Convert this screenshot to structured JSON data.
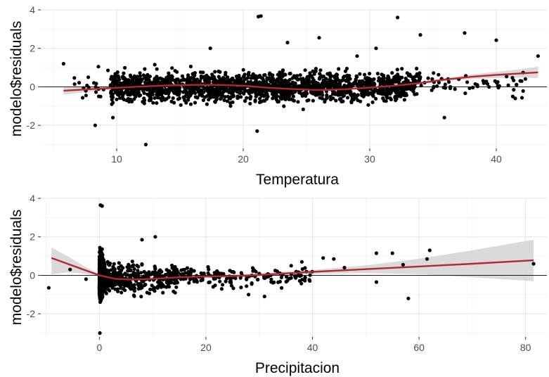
{
  "chart_data": [
    {
      "type": "scatter",
      "xlabel": "Temperatura",
      "ylabel": "modelo$residuals",
      "xlim": [
        4,
        44
      ],
      "ylim": [
        -3.2,
        4
      ],
      "x_ticks": [
        10,
        20,
        30,
        40
      ],
      "y_ticks": [
        -2,
        0,
        2,
        4
      ],
      "grid": true,
      "reference_line_y": 0,
      "smooth": {
        "color": "#b2282e",
        "band_color": "#d3d3d3",
        "x": [
          5.8,
          8,
          10,
          12,
          14,
          16,
          18,
          20,
          22,
          24,
          26,
          28,
          30,
          32,
          34,
          36,
          38,
          40,
          42,
          43.3
        ],
        "y": [
          -0.2,
          -0.12,
          -0.05,
          0.02,
          0.07,
          0.1,
          0.1,
          0.06,
          -0.05,
          -0.12,
          -0.17,
          -0.13,
          -0.04,
          0.06,
          0.2,
          0.38,
          0.52,
          0.62,
          0.7,
          0.75
        ],
        "lower": [
          -0.4,
          -0.25,
          -0.11,
          -0.02,
          0.04,
          0.07,
          0.07,
          0.03,
          -0.08,
          -0.15,
          -0.2,
          -0.16,
          -0.07,
          0.02,
          0.14,
          0.3,
          0.4,
          0.46,
          0.48,
          0.45
        ],
        "upper": [
          0.0,
          0.01,
          0.01,
          0.06,
          0.1,
          0.13,
          0.13,
          0.09,
          -0.02,
          -0.09,
          -0.14,
          -0.1,
          -0.01,
          0.1,
          0.26,
          0.46,
          0.64,
          0.78,
          0.92,
          1.05
        ]
      },
      "highlight_points": [
        {
          "x": 21.2,
          "y": 3.65
        },
        {
          "x": 21.4,
          "y": 3.68
        },
        {
          "x": 32.2,
          "y": 3.6
        },
        {
          "x": 37.5,
          "y": 2.8
        },
        {
          "x": 40.0,
          "y": 2.42
        },
        {
          "x": 34.0,
          "y": 2.7
        },
        {
          "x": 23.5,
          "y": 2.3
        },
        {
          "x": 26.0,
          "y": 2.55
        },
        {
          "x": 43.3,
          "y": 1.6
        },
        {
          "x": 5.8,
          "y": 1.2
        },
        {
          "x": 12.3,
          "y": -3.0
        },
        {
          "x": 21.1,
          "y": -2.3
        },
        {
          "x": 35.9,
          "y": -1.6
        },
        {
          "x": 41.3,
          "y": -0.5
        },
        {
          "x": 41.5,
          "y": -0.6
        },
        {
          "x": 38.5,
          "y": 0.1
        },
        {
          "x": 39.9,
          "y": 0.3
        },
        {
          "x": 30.5,
          "y": 2.0
        },
        {
          "x": 29.0,
          "y": 1.6
        },
        {
          "x": 17.4,
          "y": 2.0
        },
        {
          "x": 8.3,
          "y": -2.0
        },
        {
          "x": 9.7,
          "y": -1.6
        }
      ]
    },
    {
      "type": "scatter",
      "xlabel": "Precipitacion",
      "ylabel": "modelo$residuals",
      "xlim": [
        -11,
        84
      ],
      "ylim": [
        -3.2,
        4
      ],
      "x_ticks": [
        0,
        20,
        40,
        60,
        80
      ],
      "y_ticks": [
        -2,
        0,
        2,
        4
      ],
      "grid": true,
      "reference_line_y": 0,
      "smooth": {
        "color": "#b2282e",
        "band_color": "#d3d3d3",
        "x": [
          -9,
          -6,
          -3,
          0,
          3,
          6,
          10,
          15,
          20,
          25,
          30,
          40,
          50,
          60,
          70,
          81.5
        ],
        "y": [
          0.9,
          0.6,
          0.3,
          0.0,
          -0.18,
          -0.22,
          -0.18,
          -0.1,
          -0.06,
          -0.04,
          0.02,
          0.18,
          0.32,
          0.46,
          0.6,
          0.78
        ],
        "lower": [
          0.05,
          0.15,
          0.1,
          -0.06,
          -0.26,
          -0.32,
          -0.28,
          -0.2,
          -0.14,
          -0.12,
          -0.06,
          0.08,
          0.12,
          0.06,
          -0.1,
          -0.3
        ],
        "upper": [
          1.45,
          1.0,
          0.5,
          0.06,
          -0.1,
          -0.12,
          -0.08,
          0.0,
          0.02,
          0.04,
          0.1,
          0.28,
          0.52,
          0.86,
          1.3,
          1.85
        ]
      },
      "highlight_points": [
        {
          "x": -9.5,
          "y": -0.65
        },
        {
          "x": -5.5,
          "y": 0.3
        },
        {
          "x": -2.5,
          "y": -0.2
        },
        {
          "x": 0.2,
          "y": 3.65
        },
        {
          "x": 0.5,
          "y": 3.6
        },
        {
          "x": 0.1,
          "y": -3.0
        },
        {
          "x": 52,
          "y": 1.15
        },
        {
          "x": 55,
          "y": 1.15
        },
        {
          "x": 62,
          "y": 1.3
        },
        {
          "x": 58,
          "y": -1.2
        },
        {
          "x": 57,
          "y": 0.55
        },
        {
          "x": 61.5,
          "y": 0.85
        },
        {
          "x": 81.5,
          "y": 0.6
        },
        {
          "x": 42,
          "y": 0.9
        },
        {
          "x": 44,
          "y": 0.85
        },
        {
          "x": 52,
          "y": -0.35
        },
        {
          "x": 31,
          "y": -1.1
        },
        {
          "x": 28,
          "y": -1.0
        },
        {
          "x": 10.5,
          "y": 2.0
        },
        {
          "x": 8.0,
          "y": 1.85
        },
        {
          "x": 36,
          "y": 0.5
        },
        {
          "x": 33,
          "y": 0.25
        },
        {
          "x": 46,
          "y": 0.4
        },
        {
          "x": 38,
          "y": 0.7
        }
      ]
    }
  ]
}
